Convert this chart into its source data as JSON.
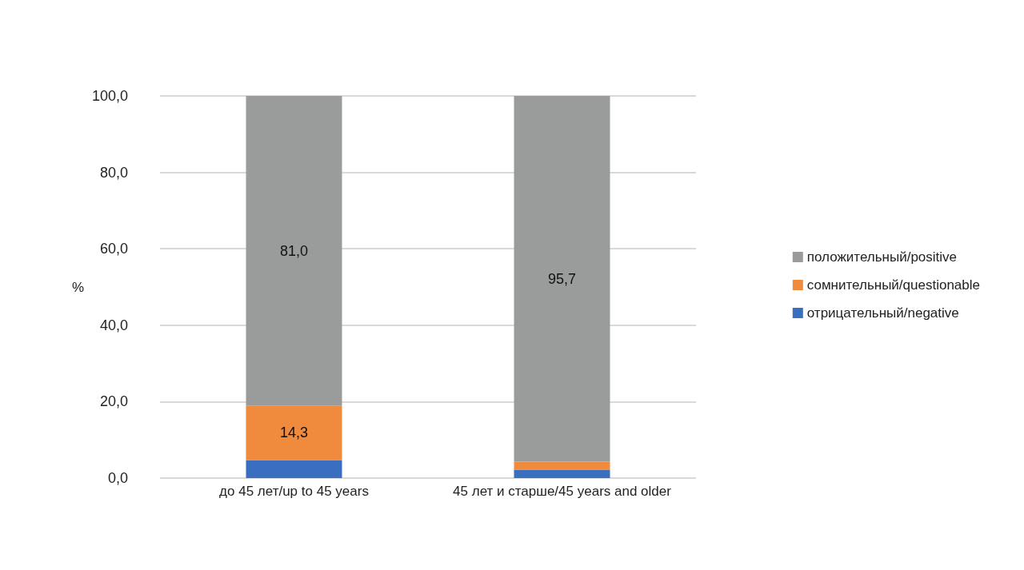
{
  "chart_data": {
    "type": "bar",
    "stacked": true,
    "ylabel": "%",
    "categories": [
      "до 45 лет/up to 45 years",
      "45 лет и старше/45 years and older"
    ],
    "series": [
      {
        "name": "отрицательный/negative",
        "color": "#3a6fbf",
        "values": [
          4.7,
          2.2
        ],
        "value_labels": [
          null,
          null
        ]
      },
      {
        "name": "сомнительный/questionable",
        "color": "#f08a3c",
        "values": [
          14.3,
          2.1
        ],
        "value_labels": [
          "14,3",
          null
        ]
      },
      {
        "name": "положительный/positive",
        "color": "#9a9b9b",
        "values": [
          81.0,
          95.7
        ],
        "value_labels": [
          "81,0",
          "95,7"
        ]
      }
    ],
    "ylim": [
      0,
      100
    ],
    "yticks": [
      {
        "value": 0,
        "label": "0,0"
      },
      {
        "value": 20,
        "label": "20,0"
      },
      {
        "value": 40,
        "label": "40,0"
      },
      {
        "value": 60,
        "label": "60,0"
      },
      {
        "value": 80,
        "label": "80,0"
      },
      {
        "value": 100,
        "label": "100,0"
      }
    ],
    "grid": true,
    "legend": "right"
  }
}
